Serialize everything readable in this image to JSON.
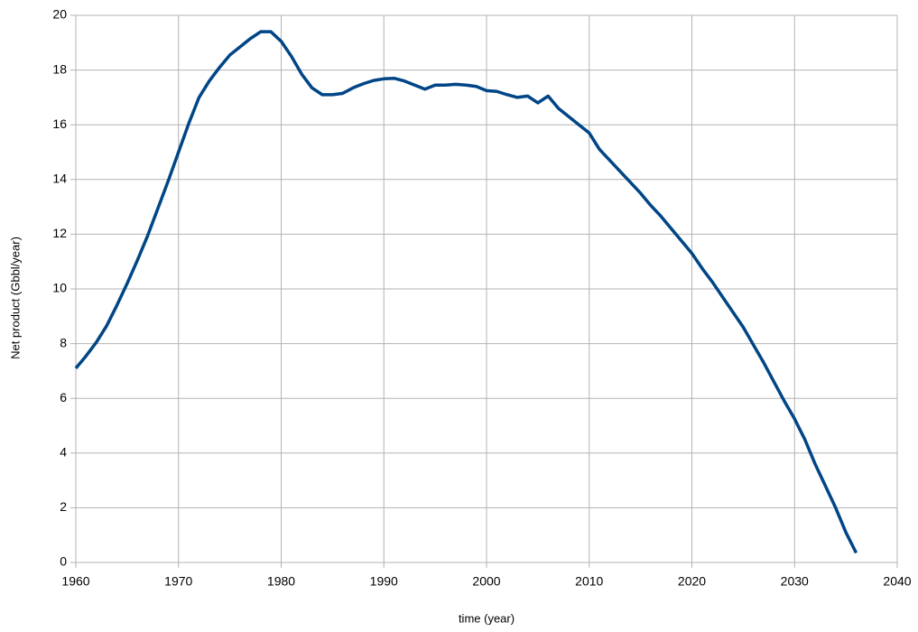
{
  "chart_data": {
    "type": "line",
    "x_label": "time (year)",
    "y_label": "Net product (Gbbl/year)",
    "x": [
      1960,
      1961,
      1962,
      1963,
      1964,
      1965,
      1966,
      1967,
      1968,
      1969,
      1970,
      1971,
      1972,
      1973,
      1974,
      1975,
      1976,
      1977,
      1978,
      1979,
      1980,
      1981,
      1982,
      1983,
      1984,
      1985,
      1986,
      1987,
      1988,
      1989,
      1990,
      1991,
      1992,
      1993,
      1994,
      1995,
      1996,
      1997,
      1998,
      1999,
      2000,
      2001,
      2002,
      2003,
      2004,
      2005,
      2006,
      2007,
      2008,
      2009,
      2010,
      2011,
      2012,
      2013,
      2014,
      2015,
      2016,
      2017,
      2018,
      2019,
      2020,
      2021,
      2022,
      2023,
      2024,
      2025,
      2026,
      2027,
      2028,
      2029,
      2030,
      2031,
      2032,
      2033,
      2034,
      2035,
      2036
    ],
    "series": [
      {
        "name": "Net product",
        "color": "#004586",
        "values": [
          7.1,
          7.55,
          8.05,
          8.65,
          9.4,
          10.2,
          11.05,
          11.95,
          12.95,
          13.95,
          15.0,
          16.05,
          17.0,
          17.6,
          18.1,
          18.55,
          18.85,
          19.15,
          19.4,
          19.4,
          19.05,
          18.5,
          17.85,
          17.35,
          17.1,
          17.1,
          17.15,
          17.35,
          17.5,
          17.62,
          17.68,
          17.7,
          17.6,
          17.45,
          17.3,
          17.45,
          17.45,
          17.48,
          17.45,
          17.4,
          17.25,
          17.22,
          17.1,
          17.0,
          17.05,
          16.8,
          17.05,
          16.6,
          16.3,
          16.0,
          15.7,
          15.1,
          14.7,
          14.3,
          13.9,
          13.5,
          13.05,
          12.65,
          12.2,
          11.75,
          11.3,
          10.75,
          10.25,
          9.7,
          9.15,
          8.6,
          7.95,
          7.3,
          6.6,
          5.9,
          5.25,
          4.5,
          3.6,
          2.8,
          2.0,
          1.1,
          0.35
        ]
      }
    ],
    "xlim": [
      1960,
      2040
    ],
    "xticks": [
      1960,
      1970,
      1980,
      1990,
      2000,
      2010,
      2020,
      2030,
      2040
    ],
    "ylim": [
      0,
      20
    ],
    "yticks": [
      0,
      2,
      4,
      6,
      8,
      10,
      12,
      14,
      16,
      18,
      20
    ],
    "grid": true
  }
}
